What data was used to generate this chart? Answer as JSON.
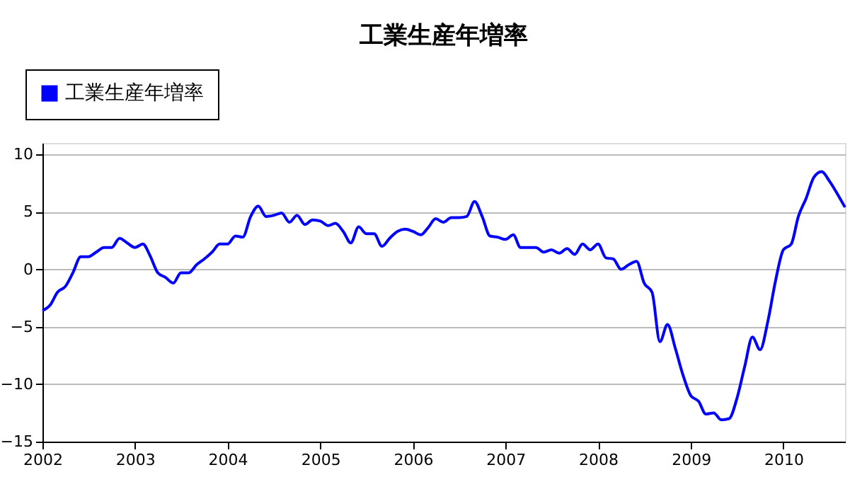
{
  "chart_data": {
    "type": "line",
    "title": "工業生産年増率",
    "x": [
      "2002-01",
      "2002-02",
      "2002-03",
      "2002-04",
      "2002-05",
      "2002-06",
      "2002-07",
      "2002-08",
      "2002-09",
      "2002-10",
      "2002-11",
      "2002-12",
      "2003-01",
      "2003-02",
      "2003-03",
      "2003-04",
      "2003-05",
      "2003-06",
      "2003-07",
      "2003-08",
      "2003-09",
      "2003-10",
      "2003-11",
      "2003-12",
      "2004-01",
      "2004-02",
      "2004-03",
      "2004-04",
      "2004-05",
      "2004-06",
      "2004-07",
      "2004-08",
      "2004-09",
      "2004-10",
      "2004-11",
      "2004-12",
      "2005-01",
      "2005-02",
      "2005-03",
      "2005-04",
      "2005-05",
      "2005-06",
      "2005-07",
      "2005-08",
      "2005-09",
      "2005-10",
      "2005-11",
      "2005-12",
      "2006-01",
      "2006-02",
      "2006-03",
      "2006-04",
      "2006-05",
      "2006-06",
      "2006-07",
      "2006-08",
      "2006-09",
      "2006-10",
      "2006-11",
      "2006-12",
      "2007-01",
      "2007-02",
      "2007-03",
      "2007-04",
      "2007-05",
      "2007-06",
      "2007-07",
      "2007-08",
      "2007-09",
      "2007-10",
      "2007-11",
      "2007-12",
      "2008-01",
      "2008-02",
      "2008-03",
      "2008-04",
      "2008-05",
      "2008-06",
      "2008-07",
      "2008-08",
      "2008-09",
      "2008-10",
      "2008-11",
      "2008-12",
      "2009-01",
      "2009-02",
      "2009-03",
      "2009-04",
      "2009-05",
      "2009-06",
      "2009-07",
      "2009-08",
      "2009-09",
      "2009-10",
      "2009-11",
      "2009-12",
      "2010-01",
      "2010-02",
      "2010-03",
      "2010-04",
      "2010-05",
      "2010-06",
      "2010-07",
      "2010-08",
      "2010-09"
    ],
    "series": [
      {
        "name": "工業生産年増率",
        "color": "#0000ff",
        "values": [
          -3.6,
          -3.1,
          -2.0,
          -1.5,
          -0.3,
          1.1,
          1.1,
          1.5,
          1.9,
          1.9,
          2.7,
          2.3,
          1.9,
          2.2,
          1.2,
          -0.3,
          -0.7,
          -1.2,
          -0.3,
          -0.3,
          0.4,
          0.9,
          1.5,
          2.2,
          2.2,
          2.9,
          2.8,
          4.6,
          5.5,
          4.6,
          4.7,
          4.9,
          4.1,
          4.7,
          3.9,
          4.3,
          4.2,
          3.8,
          4.0,
          3.3,
          2.3,
          3.7,
          3.1,
          3.1,
          2.0,
          2.7,
          3.3,
          3.5,
          3.3,
          3.0,
          3.6,
          4.4,
          4.1,
          4.5,
          4.5,
          4.6,
          5.9,
          4.6,
          2.9,
          2.8,
          2.6,
          3.0,
          1.9,
          1.9,
          1.9,
          1.5,
          1.7,
          1.4,
          1.8,
          1.3,
          2.2,
          1.7,
          2.2,
          1.0,
          0.9,
          0.0,
          0.4,
          0.7,
          -1.2,
          -2.0,
          -6.3,
          -4.8,
          -6.9,
          -9.2,
          -11.0,
          -11.5,
          -12.6,
          -12.5,
          -13.1,
          -13.0,
          -11.3,
          -8.5,
          -5.9,
          -7.0,
          -4.5,
          -1.0,
          1.7,
          2.2,
          4.6,
          6.2,
          8.0,
          8.5,
          7.7,
          6.6,
          5.4
        ]
      }
    ],
    "xlim": [
      "2002-01",
      "2010-09"
    ],
    "xticks": [
      "2002",
      "2003",
      "2004",
      "2005",
      "2006",
      "2007",
      "2008",
      "2009",
      "2010"
    ],
    "ylim": [
      -15,
      11
    ],
    "yticks": [
      -15,
      -10,
      -5,
      0,
      5,
      10
    ],
    "grid": "y",
    "legend": "top left",
    "marker": "none",
    "line_style": "solid"
  }
}
